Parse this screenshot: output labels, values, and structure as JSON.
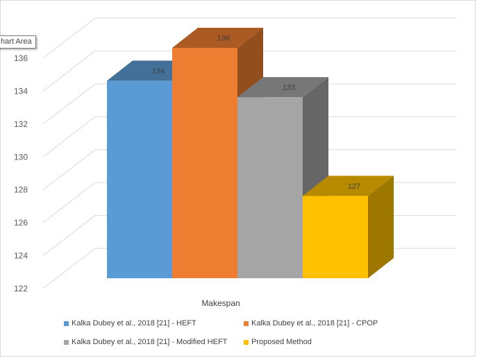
{
  "tooltip": "hart Area",
  "chart_data": {
    "type": "bar",
    "title": "",
    "categories": [
      "Makespan"
    ],
    "xlabel": "",
    "ylabel": "",
    "ylim": [
      122,
      136
    ],
    "yticks": [
      "122",
      "124",
      "126",
      "128",
      "130",
      "132",
      "134",
      "136"
    ],
    "grid": true,
    "legend_position": "bottom",
    "series": [
      {
        "name": "Kalka Dubey et al., 2018 [21] - HEFT",
        "values": [
          134
        ],
        "label": "134",
        "color": "#5b9bd5"
      },
      {
        "name": "Kalka Dubey et al., 2018 [21] - CPOP",
        "values": [
          136
        ],
        "label": "136",
        "color": "#ed7d31"
      },
      {
        "name": "Kalka Dubey et al., 2018 [21] - Modified HEFT",
        "values": [
          133
        ],
        "label": "133",
        "color": "#a5a5a5"
      },
      {
        "name": "Proposed Method",
        "values": [
          127
        ],
        "label": "127",
        "color": "#ffc000"
      }
    ]
  }
}
